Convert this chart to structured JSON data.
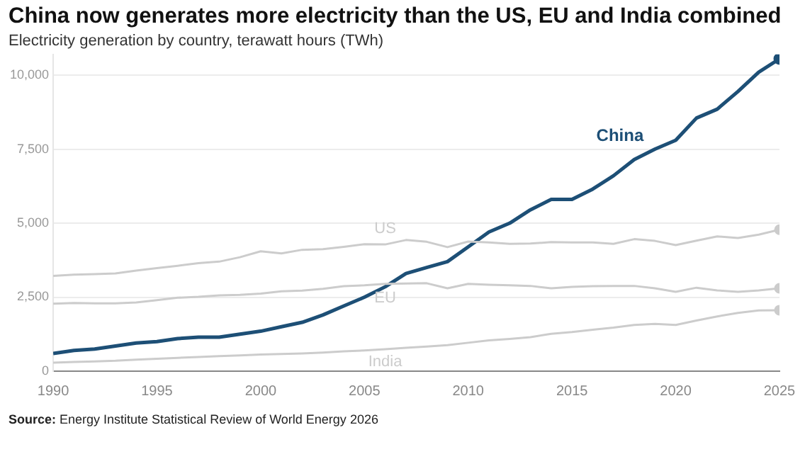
{
  "chart_data": {
    "type": "line",
    "title": "China now generates more electricity than the US, EU and India combined",
    "subtitle": "Electricity generation by country, terawatt hours (TWh)",
    "x": [
      1990,
      1991,
      1992,
      1993,
      1994,
      1995,
      1996,
      1997,
      1998,
      1999,
      2000,
      2001,
      2002,
      2003,
      2004,
      2005,
      2006,
      2007,
      2008,
      2009,
      2010,
      2011,
      2012,
      2013,
      2014,
      2015,
      2016,
      2017,
      2018,
      2019,
      2020,
      2021,
      2022,
      2023,
      2024,
      2025
    ],
    "series": [
      {
        "name": "China",
        "color": "#1d4f76",
        "values": [
          600,
          700,
          750,
          850,
          950,
          1000,
          1100,
          1150,
          1150,
          1250,
          1350,
          1500,
          1650,
          1900,
          2200,
          2500,
          2850,
          3300,
          3500,
          3700,
          4200,
          4700,
          5000,
          5450,
          5800,
          5800,
          6150,
          6600,
          7150,
          7500,
          7800,
          8550,
          8850,
          9450,
          10100,
          10550
        ]
      },
      {
        "name": "US",
        "color": "#cccccc",
        "values": [
          3220,
          3260,
          3280,
          3300,
          3400,
          3480,
          3560,
          3650,
          3700,
          3850,
          4050,
          3980,
          4100,
          4120,
          4200,
          4290,
          4280,
          4430,
          4370,
          4190,
          4380,
          4350,
          4300,
          4310,
          4360,
          4350,
          4350,
          4300,
          4460,
          4400,
          4260,
          4410,
          4550,
          4500,
          4610,
          4780
        ]
      },
      {
        "name": "EU",
        "color": "#cccccc",
        "values": [
          2280,
          2300,
          2290,
          2290,
          2320,
          2400,
          2480,
          2510,
          2560,
          2580,
          2620,
          2700,
          2720,
          2780,
          2870,
          2900,
          2950,
          2960,
          2970,
          2800,
          2950,
          2920,
          2900,
          2880,
          2800,
          2850,
          2870,
          2880,
          2880,
          2800,
          2680,
          2820,
          2730,
          2680,
          2730,
          2800
        ]
      },
      {
        "name": "India",
        "color": "#cccccc",
        "values": [
          290,
          310,
          330,
          350,
          390,
          420,
          450,
          480,
          510,
          530,
          560,
          580,
          600,
          630,
          670,
          700,
          740,
          790,
          830,
          880,
          960,
          1040,
          1090,
          1150,
          1260,
          1320,
          1400,
          1470,
          1560,
          1600,
          1560,
          1710,
          1850,
          1970,
          2050,
          2060
        ]
      }
    ],
    "xlim": [
      1990,
      2025
    ],
    "xticks": [
      1990,
      1995,
      2000,
      2005,
      2010,
      2015,
      2020,
      2025
    ],
    "ylim": [
      0,
      10700
    ],
    "yticks": [
      0,
      {
        "value": 2500,
        "label": "2,500"
      },
      {
        "value": 5000,
        "label": "5,000"
      },
      {
        "value": 7500,
        "label": "7,500"
      },
      {
        "value": 10000,
        "label": "10,000"
      }
    ],
    "grid": "y",
    "legend": false,
    "annotations": [
      "Source: Energy Institute Statistical Review of World Energy 2026"
    ]
  }
}
